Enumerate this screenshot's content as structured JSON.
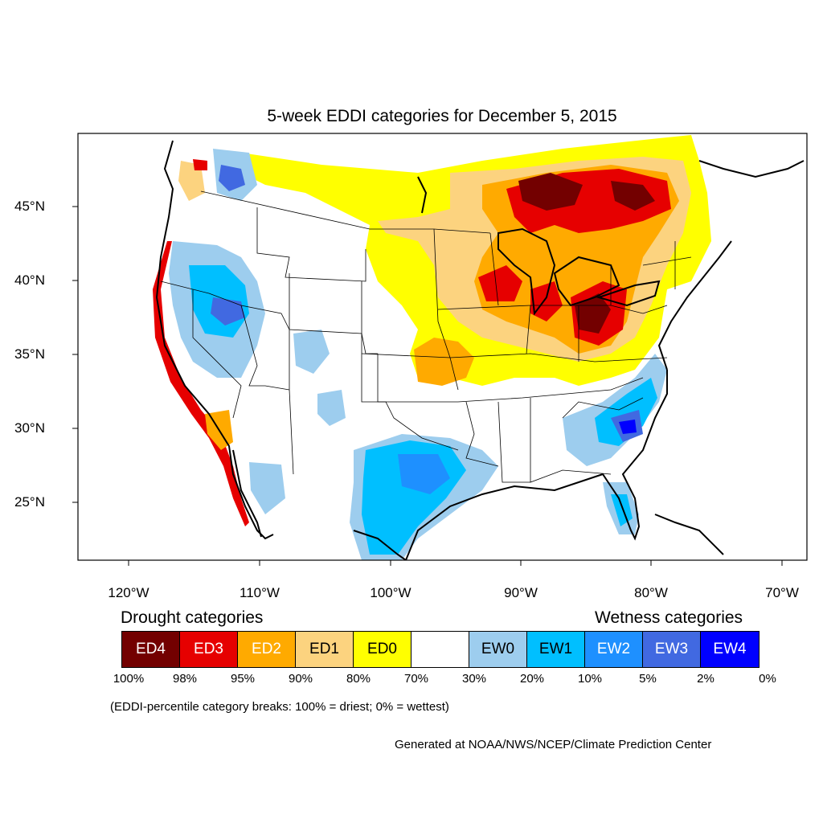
{
  "title": "5-week EDDI categories for December 5, 2015",
  "lat_labels": [
    "45°N",
    "40°N",
    "35°N",
    "30°N",
    "25°N"
  ],
  "lon_labels": [
    "120°W",
    "110°W",
    "100°W",
    "90°W",
    "80°W",
    "70°W"
  ],
  "legend": {
    "drought_heading": "Drought categories",
    "wetness_heading": "Wetness categories",
    "categories": [
      {
        "label": "ED4",
        "color": "#730000",
        "text_color": "#ffffff"
      },
      {
        "label": "ED3",
        "color": "#e60000",
        "text_color": "#ffffff"
      },
      {
        "label": "ED2",
        "color": "#ffaa00",
        "text_color": "#ffffff"
      },
      {
        "label": "ED1",
        "color": "#fcd37f",
        "text_color": "#000000"
      },
      {
        "label": "ED0",
        "color": "#ffff00",
        "text_color": "#000000"
      },
      {
        "label": "",
        "color": "#ffffff",
        "text_color": "#000000"
      },
      {
        "label": "EW0",
        "color": "#9dcdee",
        "text_color": "#000000"
      },
      {
        "label": "EW1",
        "color": "#00bfff",
        "text_color": "#000000"
      },
      {
        "label": "EW2",
        "color": "#1e90ff",
        "text_color": "#ffffff"
      },
      {
        "label": "EW3",
        "color": "#4169e1",
        "text_color": "#ffffff"
      },
      {
        "label": "EW4",
        "color": "#0000ff",
        "text_color": "#ffffff"
      }
    ],
    "ticks": [
      "100%",
      "98%",
      "95%",
      "90%",
      "80%",
      "70%",
      "30%",
      "20%",
      "10%",
      "5%",
      "2%",
      "0%"
    ]
  },
  "note": "(EDDI-percentile category breaks: 100% = driest; 0% = wettest)",
  "credit": "Generated at NOAA/NWS/NCEP/Climate Prediction Center"
}
